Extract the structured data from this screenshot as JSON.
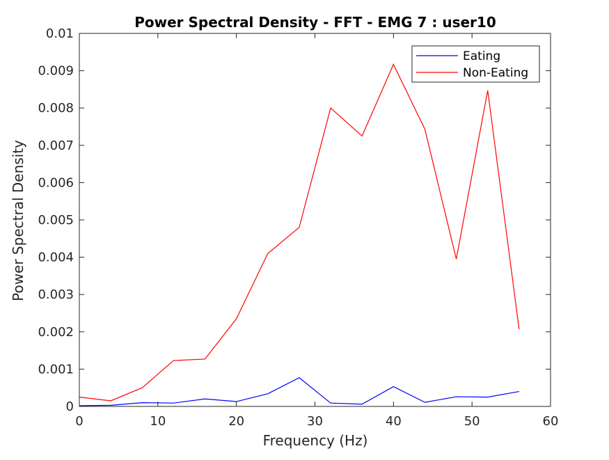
{
  "chart_data": {
    "type": "line",
    "title": "Power Spectral Density - FFT - EMG 7 :  user10",
    "xlabel": "Frequency (Hz)",
    "ylabel": "Power Spectral Density",
    "xlim": [
      0,
      60
    ],
    "ylim": [
      0,
      0.01
    ],
    "xticks": [
      0,
      10,
      20,
      30,
      40,
      50,
      60
    ],
    "xtick_labels": [
      "0",
      "10",
      "20",
      "30",
      "40",
      "50",
      "60"
    ],
    "yticks": [
      0,
      0.001,
      0.002,
      0.003,
      0.004,
      0.005,
      0.006,
      0.007,
      0.008,
      0.009,
      0.01
    ],
    "ytick_labels": [
      "0",
      "0.001",
      "0.002",
      "0.003",
      "0.004",
      "0.005",
      "0.006",
      "0.007",
      "0.008",
      "0.009",
      "0.01"
    ],
    "grid": false,
    "legend_position": "top-right",
    "x": [
      0,
      4,
      8,
      12,
      16,
      20,
      24,
      28,
      32,
      36,
      40,
      44,
      48,
      52,
      56
    ],
    "series": [
      {
        "name": "Eating",
        "color": "#0000ff",
        "values": [
          2e-05,
          3e-05,
          0.0001,
          9e-05,
          0.0002,
          0.00013,
          0.00034,
          0.00077,
          9e-05,
          6e-05,
          0.00053,
          0.00011,
          0.00026,
          0.00025,
          0.0004
        ]
      },
      {
        "name": "Non-Eating",
        "color": "#ff0000",
        "values": [
          0.00025,
          0.00015,
          0.0005,
          0.00123,
          0.00127,
          0.00235,
          0.0041,
          0.0048,
          0.008,
          0.00725,
          0.00917,
          0.00743,
          0.00395,
          0.00847,
          0.00207
        ]
      }
    ]
  }
}
